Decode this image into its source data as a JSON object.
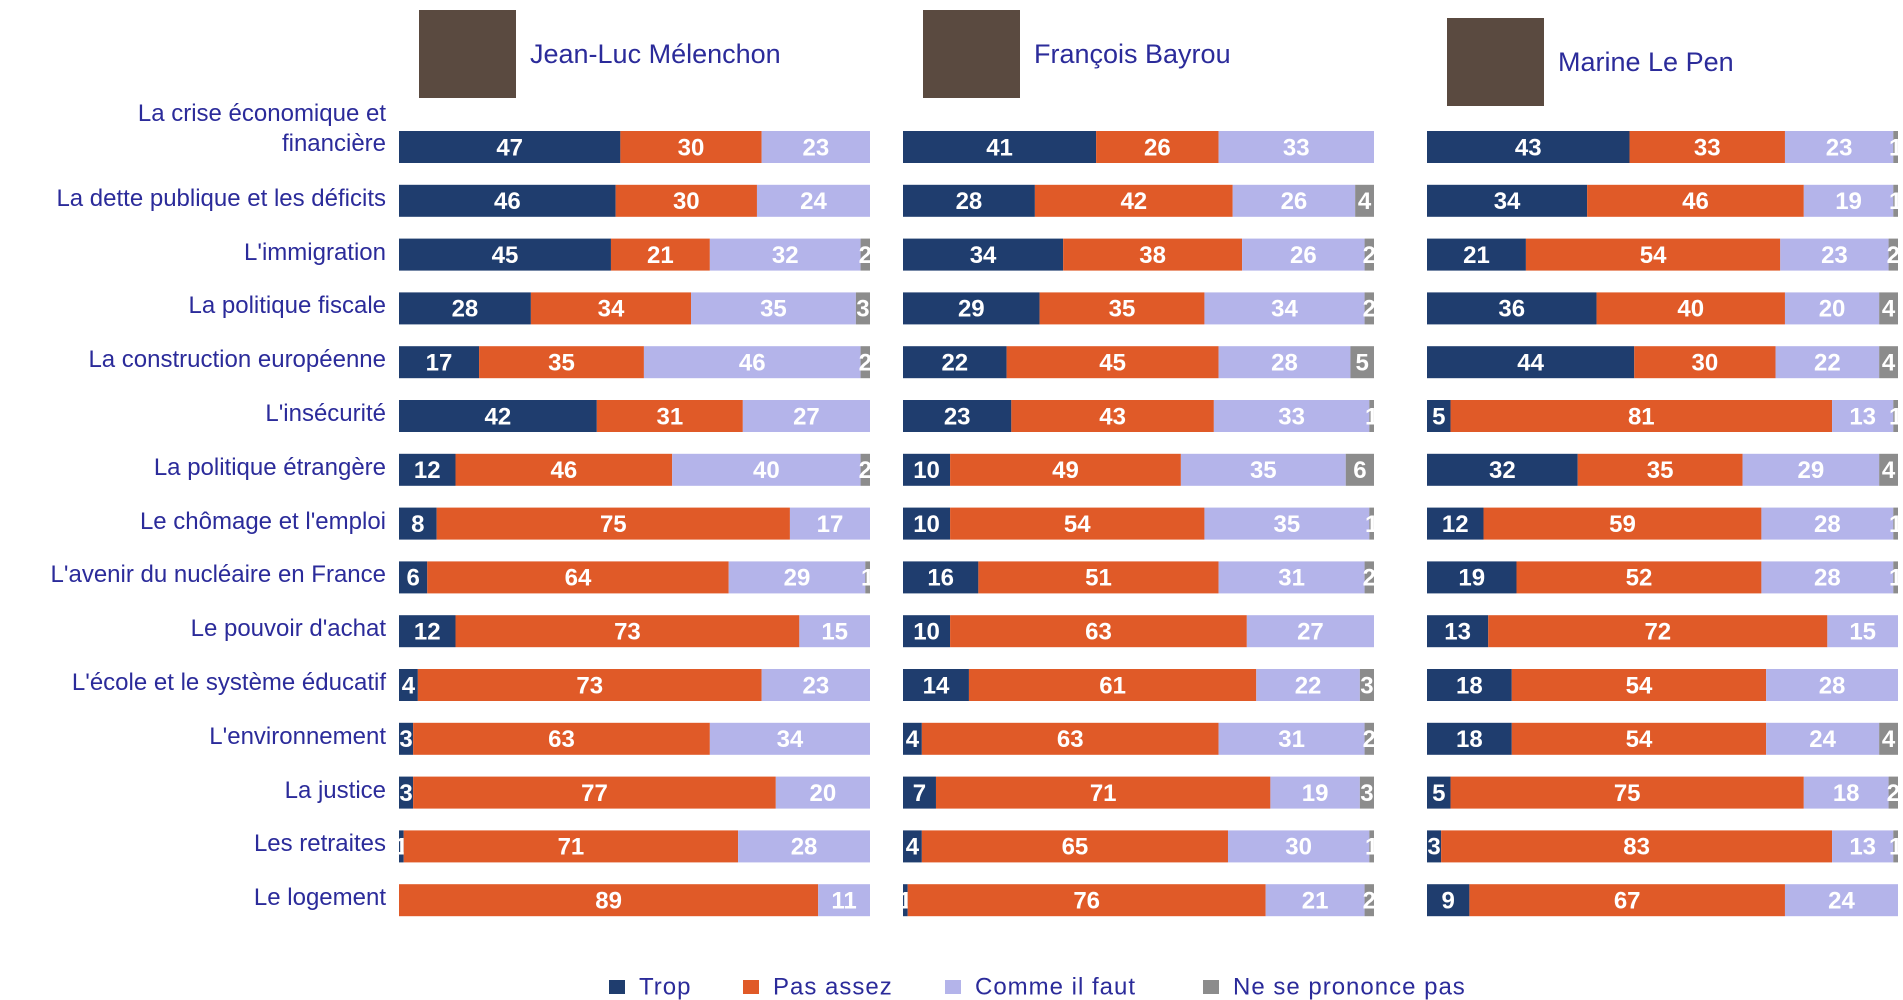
{
  "chart_data": {
    "type": "bar",
    "orientation": "horizontal",
    "stacked": true,
    "categories": [
      "La crise économique et financière",
      "La dette publique et les déficits",
      "L'immigration",
      "La politique fiscale",
      "La construction européenne",
      "L'insécurité",
      "La politique étrangère",
      "Le chômage et l'emploi",
      "L'avenir du nucléaire en France",
      "Le pouvoir d'achat",
      "L'école et le système éducatif",
      "L'environnement",
      "La justice",
      "Les retraites",
      "Le logement"
    ],
    "xlim": [
      0,
      100
    ],
    "legend": [
      {
        "name": "Trop",
        "color": "#1f3d6e"
      },
      {
        "name": "Pas assez",
        "color": "#e05a28"
      },
      {
        "name": "Comme il faut",
        "color": "#b4b4ea"
      },
      {
        "name": "Ne se prononce pas",
        "color": "#8c8c8c"
      }
    ],
    "panels": [
      {
        "title": "Jean-Luc Mélenchon",
        "series": [
          {
            "values": [
              47,
              46,
              45,
              28,
              17,
              42,
              12,
              8,
              6,
              12,
              4,
              3,
              3,
              1,
              null
            ]
          },
          {
            "values": [
              30,
              30,
              21,
              34,
              35,
              31,
              46,
              75,
              64,
              73,
              73,
              63,
              77,
              71,
              89
            ]
          },
          {
            "values": [
              23,
              24,
              32,
              35,
              46,
              27,
              40,
              17,
              29,
              15,
              23,
              34,
              20,
              28,
              11
            ]
          },
          {
            "values": [
              null,
              null,
              2,
              3,
              2,
              null,
              2,
              null,
              1,
              null,
              null,
              null,
              null,
              null,
              null
            ]
          }
        ]
      },
      {
        "title": "François Bayrou",
        "series": [
          {
            "values": [
              41,
              28,
              34,
              29,
              22,
              23,
              10,
              10,
              16,
              10,
              14,
              4,
              7,
              4,
              1
            ]
          },
          {
            "values": [
              26,
              42,
              38,
              35,
              45,
              43,
              49,
              54,
              51,
              63,
              61,
              63,
              71,
              65,
              76
            ]
          },
          {
            "values": [
              33,
              26,
              26,
              34,
              28,
              33,
              35,
              35,
              31,
              27,
              22,
              31,
              19,
              30,
              21
            ]
          },
          {
            "values": [
              null,
              4,
              2,
              2,
              5,
              1,
              6,
              1,
              2,
              null,
              3,
              2,
              3,
              1,
              2
            ]
          }
        ]
      },
      {
        "title": "Marine Le Pen",
        "series": [
          {
            "values": [
              43,
              34,
              21,
              36,
              44,
              5,
              32,
              12,
              19,
              13,
              18,
              18,
              5,
              3,
              9
            ]
          },
          {
            "values": [
              33,
              46,
              54,
              40,
              30,
              81,
              35,
              59,
              52,
              72,
              54,
              54,
              75,
              83,
              67
            ]
          },
          {
            "values": [
              23,
              19,
              23,
              20,
              22,
              13,
              29,
              28,
              28,
              15,
              28,
              24,
              18,
              13,
              24
            ]
          },
          {
            "values": [
              1,
              1,
              2,
              4,
              4,
              1,
              4,
              1,
              1,
              null,
              null,
              4,
              2,
              1,
              null
            ]
          }
        ]
      }
    ]
  }
}
